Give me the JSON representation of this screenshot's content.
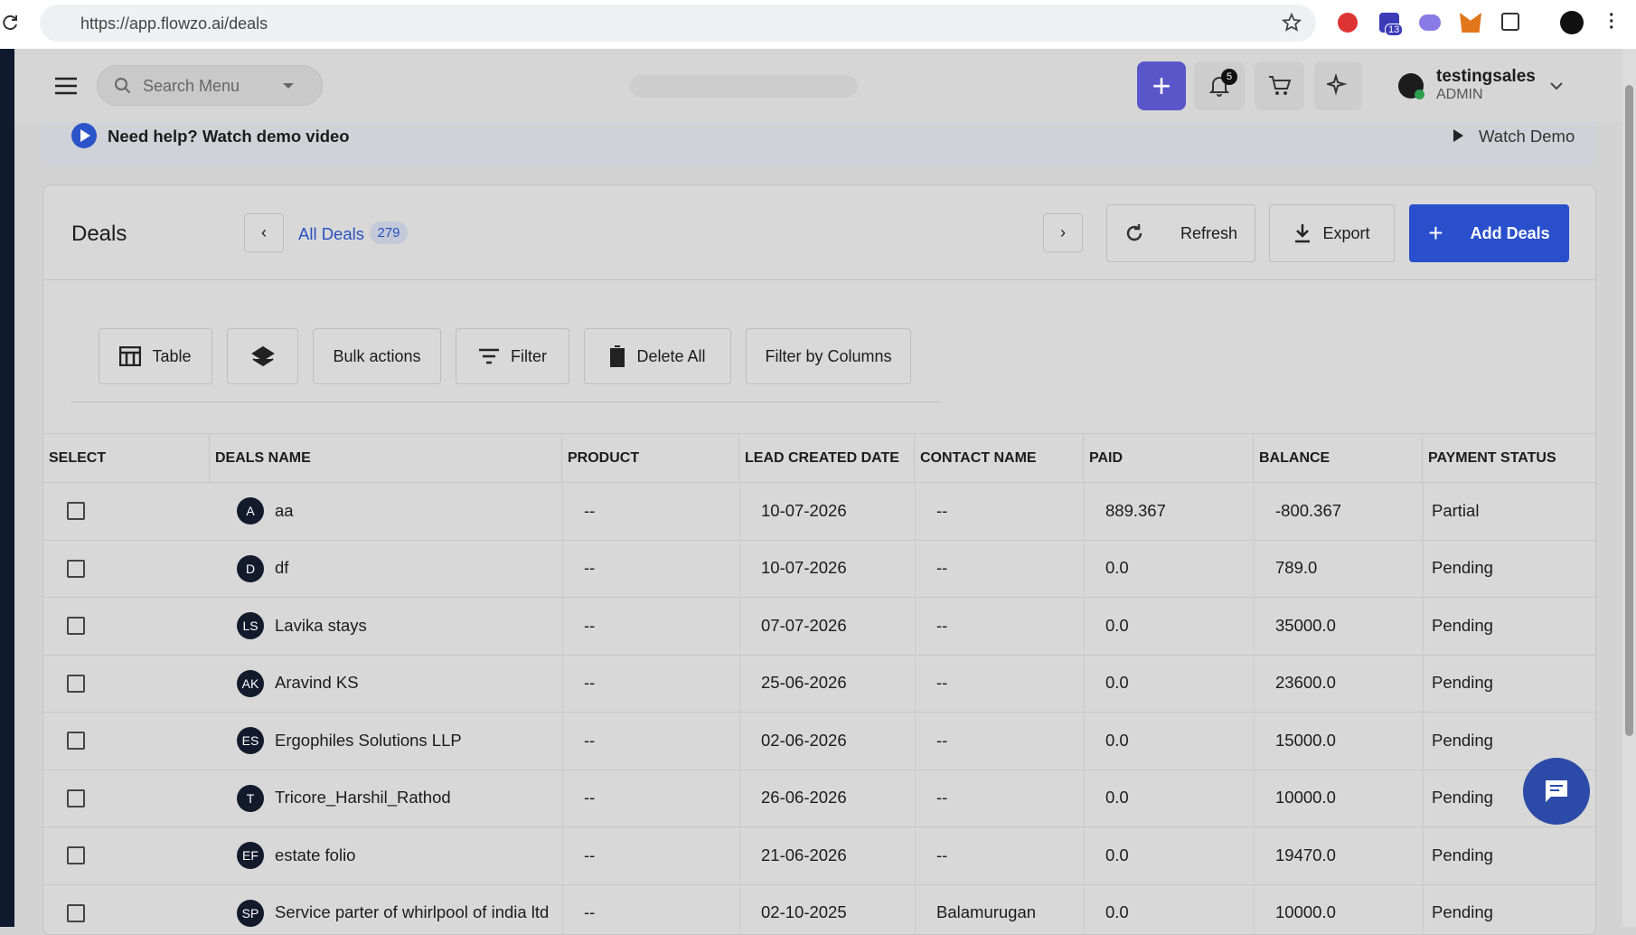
{
  "browser": {
    "url": "https://app.flowzo.ai/deals",
    "extension_badge": "13"
  },
  "header": {
    "search_placeholder": "Search Menu",
    "notification_count": "5",
    "user_name": "testingsales",
    "user_role": "ADMIN"
  },
  "banner": {
    "text": "Need help? Watch demo video",
    "link": "Watch Demo"
  },
  "deals": {
    "title": "Deals",
    "view": "All Deals",
    "count": 279,
    "buttons": [
      "Refresh",
      "Export",
      "Add Deals"
    ]
  },
  "toolbar": {
    "table": "Table",
    "bulk": "Bulk actions",
    "filter": "Filter",
    "delete": "Delete All",
    "columns": "Filter by Columns"
  },
  "table": {
    "columns": [
      "SELECT",
      "DEALS NAME",
      "PRODUCT",
      "LEAD CREATED DATE",
      "CONTACT NAME",
      "PAID",
      "BALANCE",
      "PAYMENT STATUS"
    ],
    "rows": [
      {
        "initials": "A",
        "name": "aa",
        "product": "--",
        "date": "10-07-2026",
        "contact": "--",
        "paid": "889.367",
        "balance": "-800.367",
        "status": "Partial"
      },
      {
        "initials": "D",
        "name": "df",
        "product": "--",
        "date": "10-07-2026",
        "contact": "--",
        "paid": "0.0",
        "balance": "789.0",
        "status": "Pending"
      },
      {
        "initials": "LS",
        "name": "Lavika stays",
        "product": "--",
        "date": "07-07-2026",
        "contact": "--",
        "paid": "0.0",
        "balance": "35000.0",
        "status": "Pending"
      },
      {
        "initials": "AK",
        "name": "Aravind KS",
        "product": "--",
        "date": "25-06-2026",
        "contact": "--",
        "paid": "0.0",
        "balance": "23600.0",
        "status": "Pending"
      },
      {
        "initials": "ES",
        "name": "Ergophiles Solutions LLP",
        "product": "--",
        "date": "02-06-2026",
        "contact": "--",
        "paid": "0.0",
        "balance": "15000.0",
        "status": "Pending"
      },
      {
        "initials": "T",
        "name": "Tricore_Harshil_Rathod",
        "product": "--",
        "date": "26-06-2026",
        "contact": "--",
        "paid": "0.0",
        "balance": "10000.0",
        "status": "Pending"
      },
      {
        "initials": "EF",
        "name": "estate folio",
        "product": "--",
        "date": "21-06-2026",
        "contact": "--",
        "paid": "0.0",
        "balance": "19470.0",
        "status": "Pending"
      },
      {
        "initials": "SP",
        "name": "Service parter of whirlpool of india ltd",
        "product": "--",
        "date": "02-10-2025",
        "contact": "Balamurugan",
        "paid": "0.0",
        "balance": "10000.0",
        "status": "Pending"
      }
    ]
  }
}
